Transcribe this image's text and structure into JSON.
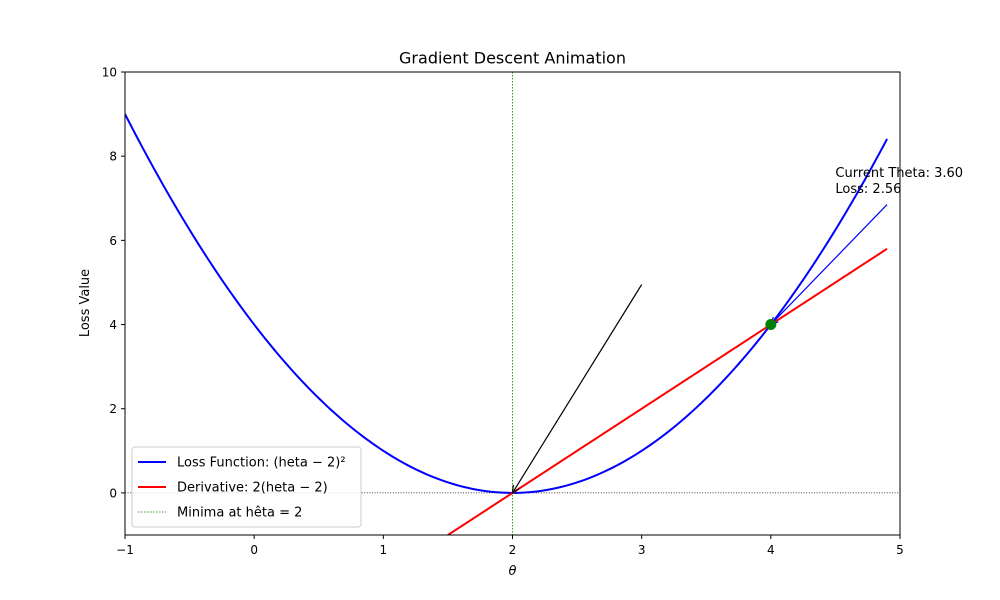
{
  "chart_data": {
    "type": "line",
    "title": "Gradient Descent Animation",
    "xlabel": "θ",
    "ylabel": "Loss Value",
    "xlim": [
      -1,
      5
    ],
    "ylim": [
      -1,
      10
    ],
    "xticks": [
      -1,
      0,
      1,
      2,
      3,
      4,
      5
    ],
    "yticks": [
      0,
      2,
      4,
      6,
      8,
      10
    ],
    "grid": false,
    "legend_position": "lower-left",
    "series": [
      {
        "name": "Loss Function: (heta − 2)²",
        "kind": "function",
        "function": "(x-2)^2",
        "x_range": [
          -1,
          4.9
        ],
        "color": "#0000ff"
      },
      {
        "name": "Derivative: 2(heta − 2)",
        "kind": "function",
        "function": "2*(x-2)",
        "x_range": [
          1.5,
          4.9
        ],
        "color": "#ff0000"
      },
      {
        "name": "Minima at hêta = 2",
        "kind": "vline",
        "x": 2,
        "color": "#008000",
        "style": "dotted"
      }
    ],
    "reference_lines": [
      {
        "kind": "hline",
        "y": 0,
        "color": "#000000",
        "style": "dotted"
      }
    ],
    "points": [
      {
        "x": 4,
        "y": 4,
        "color": "#008000"
      }
    ],
    "arrows": [
      {
        "from": [
          3,
          4.95
        ],
        "to": [
          2,
          0
        ],
        "color": "#000000"
      },
      {
        "from": [
          4.9,
          6.85
        ],
        "to": [
          4,
          4
        ],
        "color": "#0000ff"
      }
    ],
    "annotation": {
      "lines": [
        "Current Theta: 3.60",
        "Loss: 2.56"
      ],
      "x": 4.5,
      "y": 7.5
    }
  }
}
